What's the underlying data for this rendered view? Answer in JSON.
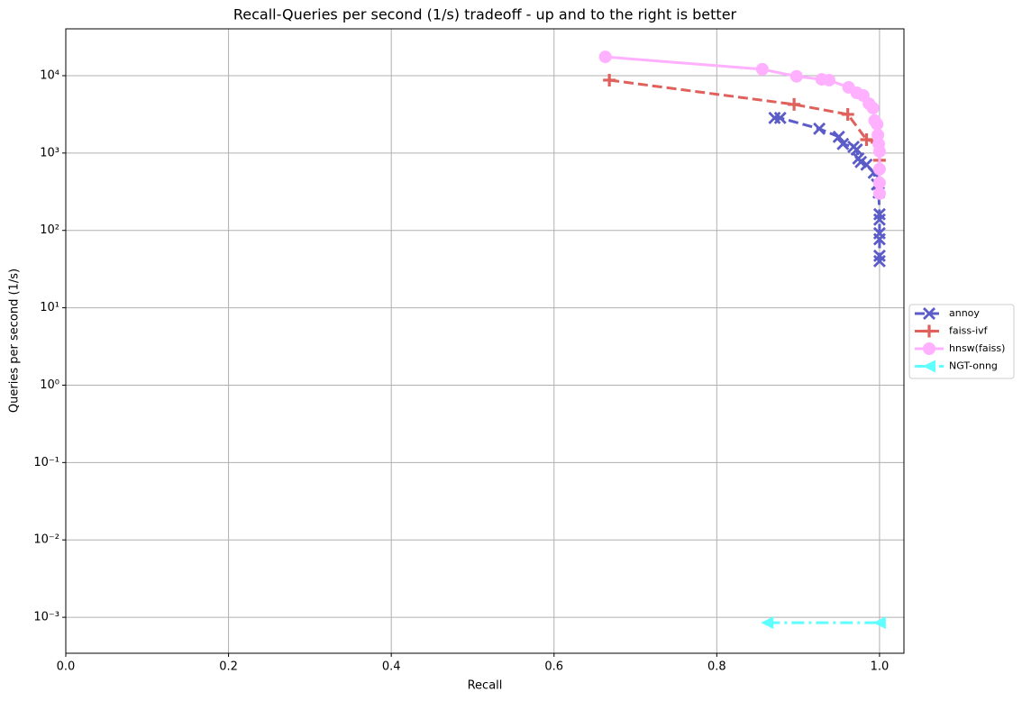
{
  "chart_data": {
    "type": "line",
    "title": "Recall-Queries per second (1/s) tradeoff - up and to the right is better",
    "xlabel": "Recall",
    "ylabel": "Queries per second (1/s)",
    "xlim": [
      0,
      1.03
    ],
    "ylim": [
      0.000343,
      40300
    ],
    "yscale": "log",
    "grid": true,
    "legend": "center right outside",
    "xticks": [
      {
        "value": 0,
        "label": "0.0"
      },
      0.2,
      0.4,
      0.6,
      0.8,
      {
        "value": 1,
        "label": "1.0"
      }
    ],
    "yticks": [
      {
        "value": 0.001,
        "label": "10⁻³"
      },
      {
        "value": 0.01,
        "label": "10⁻²"
      },
      {
        "value": 0.1,
        "label": "10⁻¹"
      },
      {
        "value": 1,
        "label": "10⁰"
      },
      {
        "value": 10,
        "label": "10¹"
      },
      {
        "value": 100,
        "label": "10²"
      },
      {
        "value": 1000,
        "label": "10³"
      },
      {
        "value": 10000,
        "label": "10⁴"
      }
    ],
    "series": [
      {
        "name": "annoy",
        "color": "#5c5cc8",
        "marker": "x",
        "linestyle": "dashed",
        "x": [
          0.871,
          0.878,
          0.926,
          0.95,
          0.955,
          0.968,
          0.972,
          0.974,
          0.977,
          0.984,
          0.993,
          0.997,
          0.999,
          1.0,
          1.0,
          1.0,
          1.0,
          1.0,
          1.0
        ],
        "values": [
          2840,
          2840,
          2060,
          1620,
          1310,
          1200,
          1110,
          850,
          766,
          707,
          555,
          392,
          308,
          162,
          138,
          92,
          77,
          47,
          40
        ]
      },
      {
        "name": "faiss-ivf",
        "color": "#e0605c",
        "marker": "P",
        "linestyle": "dashed",
        "x": [
          0.668,
          0.895,
          0.961,
          0.984,
          0.997,
          1.0
        ],
        "values": [
          8750,
          4250,
          3160,
          1490,
          1380,
          807
        ]
      },
      {
        "name": "hnsw(faiss)",
        "color": "#ffb0ff",
        "marker": "o",
        "linestyle": "solid",
        "x": [
          0.663,
          0.856,
          0.898,
          0.929,
          0.938,
          0.962,
          0.972,
          0.98,
          0.987,
          0.992,
          0.994,
          0.997,
          0.998,
          0.999,
          1.0,
          1.0,
          1.0,
          1.0
        ],
        "values": [
          17500,
          12100,
          9800,
          8960,
          8750,
          7060,
          6000,
          5540,
          4360,
          3810,
          2630,
          2360,
          1710,
          1310,
          1050,
          620,
          412,
          300
        ]
      },
      {
        "name": "NGT-onng",
        "color": "#60ffff",
        "marker": "<",
        "linestyle": "dashdot",
        "x": [
          0.862,
          1.0
        ],
        "values": [
          0.00085,
          0.00085
        ]
      }
    ]
  }
}
